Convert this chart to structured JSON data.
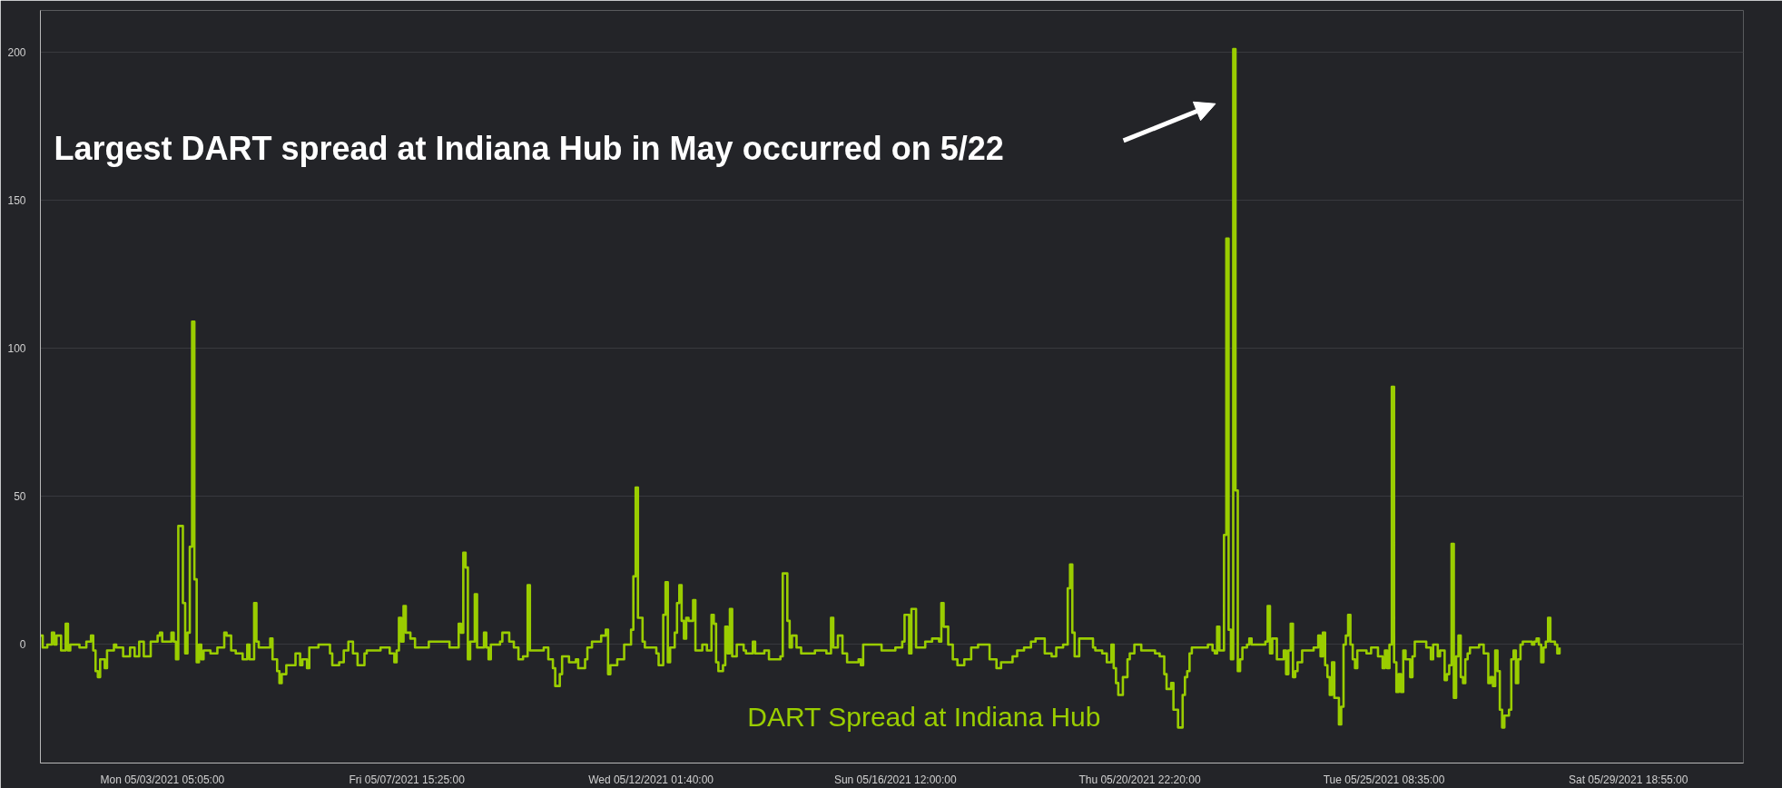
{
  "chart_data": {
    "type": "step",
    "xlim": [
      "2021-05-01T00:00",
      "2021-05-31T21:00"
    ],
    "ylim": [
      -40,
      214
    ],
    "xticks": [
      {
        "value": "2021-05-03T05:05",
        "label": "Mon 05/03/2021 05:05:00"
      },
      {
        "value": "2021-05-07T15:25",
        "label": "Fri 05/07/2021 15:25:00"
      },
      {
        "value": "2021-05-12T01:40",
        "label": "Wed 05/12/2021 01:40:00"
      },
      {
        "value": "2021-05-16T12:00",
        "label": "Sun 05/16/2021 12:00:00"
      },
      {
        "value": "2021-05-20T22:20",
        "label": "Thu 05/20/2021 22:20:00"
      },
      {
        "value": "2021-05-25T08:35",
        "label": "Tue 05/25/2021 08:35:00"
      },
      {
        "value": "2021-05-29T18:55",
        "label": "Sat 05/29/2021 18:55:00"
      }
    ],
    "yticks": [
      0,
      50,
      100,
      150,
      200
    ],
    "grid": "y",
    "annotations": [
      "Largest DART spread at Indiana Hub in May occurred on 5/22"
    ],
    "series": [
      {
        "name": "DART Spread at Indiana Hub",
        "color": "#9acd00",
        "x": [
          "2021-05-01T00:00",
          "2021-05-01T01:00",
          "2021-05-01T03:00",
          "2021-05-01T05:00",
          "2021-05-01T06:00",
          "2021-05-01T07:00",
          "2021-05-01T09:00",
          "2021-05-01T11:00",
          "2021-05-01T12:00",
          "2021-05-01T13:00",
          "2021-05-01T17:00",
          "2021-05-01T20:00",
          "2021-05-01T22:00",
          "2021-05-01T23:00",
          "2021-05-02T00:00",
          "2021-05-02T01:00",
          "2021-05-02T02:00",
          "2021-05-02T04:00",
          "2021-05-02T05:00",
          "2021-05-02T08:00",
          "2021-05-02T09:00",
          "2021-05-02T12:00",
          "2021-05-02T15:00",
          "2021-05-02T17:00",
          "2021-05-02T19:00",
          "2021-05-02T21:00",
          "2021-05-03T00:00",
          "2021-05-03T03:00",
          "2021-05-03T04:00",
          "2021-05-03T05:00",
          "2021-05-03T09:00",
          "2021-05-03T10:00",
          "2021-05-03T11:00",
          "2021-05-03T12:00",
          "2021-05-03T14:00",
          "2021-05-03T15:00",
          "2021-05-03T16:00",
          "2021-05-03T17:00",
          "2021-05-03T18:00",
          "2021-05-03T19:00",
          "2021-05-03T20:00",
          "2021-05-03T21:00",
          "2021-05-03T22:00",
          "2021-05-03T23:00",
          "2021-05-04T02:00",
          "2021-05-04T05:00",
          "2021-05-04T08:00",
          "2021-05-04T09:00",
          "2021-05-04T11:00",
          "2021-05-04T13:00",
          "2021-05-04T16:00",
          "2021-05-04T18:00",
          "2021-05-04T19:00",
          "2021-05-04T21:00",
          "2021-05-04T22:00",
          "2021-05-04T23:00",
          "2021-05-05T04:00",
          "2021-05-05T05:00",
          "2021-05-05T07:00",
          "2021-05-05T08:00",
          "2021-05-05T09:00",
          "2021-05-05T11:00",
          "2021-05-05T15:00",
          "2021-05-05T17:00",
          "2021-05-05T18:00",
          "2021-05-05T20:00",
          "2021-05-05T21:00",
          "2021-05-06T01:00",
          "2021-05-06T06:00",
          "2021-05-06T07:00",
          "2021-05-06T10:00",
          "2021-05-06T12:00",
          "2021-05-06T14:00",
          "2021-05-06T16:00",
          "2021-05-06T18:00",
          "2021-05-06T21:00",
          "2021-05-06T22:00",
          "2021-05-07T04:00",
          "2021-05-07T08:00",
          "2021-05-07T10:00",
          "2021-05-07T11:00",
          "2021-05-07T12:00",
          "2021-05-07T13:00",
          "2021-05-07T14:00",
          "2021-05-07T15:00",
          "2021-05-07T17:00",
          "2021-05-07T19:00",
          "2021-05-08T01:00",
          "2021-05-08T09:00",
          "2021-05-08T10:00",
          "2021-05-08T14:00",
          "2021-05-08T15:00",
          "2021-05-08T16:00",
          "2021-05-08T17:00",
          "2021-05-08T18:00",
          "2021-05-08T19:00",
          "2021-05-08T21:00",
          "2021-05-08T22:00",
          "2021-05-09T01:00",
          "2021-05-09T02:00",
          "2021-05-09T03:00",
          "2021-05-09T04:00",
          "2021-05-09T08:00",
          "2021-05-09T09:00",
          "2021-05-09T12:00",
          "2021-05-09T14:00",
          "2021-05-09T16:00",
          "2021-05-09T18:00",
          "2021-05-09T20:00",
          "2021-05-09T21:00",
          "2021-05-10T03:00",
          "2021-05-10T05:00",
          "2021-05-10T07:00",
          "2021-05-10T08:00",
          "2021-05-10T10:00",
          "2021-05-10T11:00",
          "2021-05-10T14:00",
          "2021-05-10T17:00",
          "2021-05-10T18:00",
          "2021-05-10T21:00",
          "2021-05-10T22:00",
          "2021-05-11T00:00",
          "2021-05-11T04:00",
          "2021-05-11T06:00",
          "2021-05-11T07:00",
          "2021-05-11T08:00",
          "2021-05-11T11:00",
          "2021-05-11T14:00",
          "2021-05-11T17:00",
          "2021-05-11T18:00",
          "2021-05-11T19:00",
          "2021-05-11T20:00",
          "2021-05-11T22:00",
          "2021-05-11T23:00",
          "2021-05-12T02:00",
          "2021-05-12T04:00",
          "2021-05-12T05:00",
          "2021-05-12T07:00",
          "2021-05-12T08:00",
          "2021-05-12T09:00",
          "2021-05-12T10:00",
          "2021-05-12T12:00",
          "2021-05-12T13:00",
          "2021-05-12T14:00",
          "2021-05-12T15:00",
          "2021-05-12T16:00",
          "2021-05-12T17:00",
          "2021-05-12T18:00",
          "2021-05-12T20:00",
          "2021-05-12T21:00",
          "2021-05-13T00:00",
          "2021-05-13T02:00",
          "2021-05-13T04:00",
          "2021-05-13T05:00",
          "2021-05-13T06:00",
          "2021-05-13T07:00",
          "2021-05-13T09:00",
          "2021-05-13T10:00",
          "2021-05-13T11:00",
          "2021-05-13T12:00",
          "2021-05-13T13:00",
          "2021-05-13T15:00",
          "2021-05-13T18:00",
          "2021-05-13T19:00",
          "2021-05-13T22:00",
          "2021-05-13T23:00",
          "2021-05-14T03:00",
          "2021-05-14T05:00",
          "2021-05-14T10:00",
          "2021-05-14T11:00",
          "2021-05-14T13:00",
          "2021-05-14T14:00",
          "2021-05-14T15:00",
          "2021-05-14T17:00",
          "2021-05-14T19:00",
          "2021-05-15T01:00",
          "2021-05-15T06:00",
          "2021-05-15T08:00",
          "2021-05-15T09:00",
          "2021-05-15T11:00",
          "2021-05-15T13:00",
          "2021-05-15T15:00",
          "2021-05-15T20:00",
          "2021-05-15T21:00",
          "2021-05-15T22:00",
          "2021-05-16T06:00",
          "2021-05-16T12:00",
          "2021-05-16T15:00",
          "2021-05-16T16:00",
          "2021-05-16T18:00",
          "2021-05-16T19:00",
          "2021-05-16T21:00",
          "2021-05-17T01:00",
          "2021-05-17T04:00",
          "2021-05-17T07:00",
          "2021-05-17T08:00",
          "2021-05-17T09:00",
          "2021-05-17T11:00",
          "2021-05-17T13:00",
          "2021-05-17T15:00",
          "2021-05-17T18:00",
          "2021-05-17T21:00",
          "2021-05-18T00:00",
          "2021-05-18T05:00",
          "2021-05-18T08:00",
          "2021-05-18T10:00",
          "2021-05-18T15:00",
          "2021-05-18T17:00",
          "2021-05-18T20:00",
          "2021-05-18T23:00",
          "2021-05-19T01:00",
          "2021-05-19T05:00",
          "2021-05-19T08:00",
          "2021-05-19T10:00",
          "2021-05-19T13:00",
          "2021-05-19T15:00",
          "2021-05-19T16:00",
          "2021-05-19T17:00",
          "2021-05-19T18:00",
          "2021-05-19T20:00",
          "2021-05-20T02:00",
          "2021-05-20T03:00",
          "2021-05-20T06:00",
          "2021-05-20T08:00",
          "2021-05-20T10:00",
          "2021-05-20T11:00",
          "2021-05-20T12:00",
          "2021-05-20T13:00",
          "2021-05-20T15:00",
          "2021-05-20T17:00",
          "2021-05-20T18:00",
          "2021-05-20T20:00",
          "2021-05-20T23:00",
          "2021-05-21T05:00",
          "2021-05-21T07:00",
          "2021-05-21T09:00",
          "2021-05-21T10:00",
          "2021-05-21T12:00",
          "2021-05-21T13:00",
          "2021-05-21T15:00",
          "2021-05-21T17:00",
          "2021-05-21T18:00",
          "2021-05-21T19:00",
          "2021-05-21T20:00",
          "2021-05-21T21:00",
          "2021-05-22T04:00",
          "2021-05-22T06:00",
          "2021-05-22T07:00",
          "2021-05-22T08:00",
          "2021-05-22T09:00",
          "2021-05-22T11:00",
          "2021-05-22T12:00",
          "2021-05-22T13:00",
          "2021-05-22T14:00",
          "2021-05-22T15:00",
          "2021-05-22T16:00",
          "2021-05-22T17:00",
          "2021-05-22T18:00",
          "2021-05-22T19:00",
          "2021-05-22T21:00",
          "2021-05-22T22:00",
          "2021-05-22T23:00",
          "2021-05-23T05:00",
          "2021-05-23T06:00",
          "2021-05-23T07:00",
          "2021-05-23T08:00",
          "2021-05-23T10:00",
          "2021-05-23T13:00",
          "2021-05-23T14:00",
          "2021-05-23T15:00",
          "2021-05-23T16:00",
          "2021-05-23T17:00",
          "2021-05-23T18:00",
          "2021-05-23T19:00",
          "2021-05-23T21:00",
          "2021-05-24T02:00",
          "2021-05-24T04:00",
          "2021-05-24T05:00",
          "2021-05-24T06:00",
          "2021-05-24T07:00",
          "2021-05-24T08:00",
          "2021-05-24T09:00",
          "2021-05-24T10:00",
          "2021-05-24T11:00",
          "2021-05-24T13:00",
          "2021-05-24T14:00",
          "2021-05-24T15:00",
          "2021-05-24T16:00",
          "2021-05-24T17:00",
          "2021-05-24T18:00",
          "2021-05-24T19:00",
          "2021-05-24T20:00",
          "2021-05-24T21:00",
          "2021-05-25T01:00",
          "2021-05-25T03:00",
          "2021-05-25T06:00",
          "2021-05-25T08:00",
          "2021-05-25T09:00",
          "2021-05-25T10:00",
          "2021-05-25T11:00",
          "2021-05-25T12:00",
          "2021-05-25T13:00",
          "2021-05-25T14:00",
          "2021-05-25T15:00",
          "2021-05-25T16:00",
          "2021-05-25T17:00",
          "2021-05-25T18:00",
          "2021-05-25T20:00",
          "2021-05-25T21:00",
          "2021-05-25T22:00",
          "2021-05-26T03:00",
          "2021-05-26T05:00",
          "2021-05-26T06:00",
          "2021-05-26T08:00",
          "2021-05-26T09:00",
          "2021-05-26T11:00",
          "2021-05-26T12:00",
          "2021-05-26T13:00",
          "2021-05-26T14:00",
          "2021-05-26T15:00",
          "2021-05-26T16:00",
          "2021-05-26T17:00",
          "2021-05-26T18:00",
          "2021-05-26T19:00",
          "2021-05-26T20:00",
          "2021-05-26T21:00",
          "2021-05-26T22:00",
          "2021-05-27T02:00",
          "2021-05-27T04:00",
          "2021-05-27T06:00",
          "2021-05-27T07:00",
          "2021-05-27T08:00",
          "2021-05-27T09:00",
          "2021-05-27T10:00",
          "2021-05-27T11:00",
          "2021-05-27T12:00",
          "2021-05-27T13:00",
          "2021-05-27T15:00",
          "2021-05-27T16:00",
          "2021-05-27T17:00",
          "2021-05-27T18:00",
          "2021-05-27T19:00",
          "2021-05-27T20:00",
          "2021-05-27T21:00",
          "2021-05-28T01:00",
          "2021-05-28T02:00",
          "2021-05-28T03:00",
          "2021-05-28T04:00",
          "2021-05-28T05:00",
          "2021-05-28T06:00",
          "2021-05-28T07:00",
          "2021-05-28T08:00",
          "2021-05-28T09:00",
          "2021-05-28T11:00",
          "2021-05-28T12:00",
          "2021-05-28T13:00"
        ],
        "values": [
          3,
          -1,
          0,
          4,
          0,
          3,
          -2,
          7,
          -2,
          0,
          -1,
          1,
          3,
          -2,
          -9,
          -11,
          -5,
          -8,
          -2,
          0,
          -1,
          -4,
          -1,
          -4,
          1,
          -4,
          1,
          3,
          4,
          1,
          4,
          1,
          -5,
          40,
          14,
          -3,
          4,
          33,
          109,
          22,
          -6,
          0,
          -5,
          -2,
          -3,
          -1,
          4,
          3,
          -2,
          -3,
          -5,
          0,
          -5,
          14,
          1,
          -1,
          2,
          -5,
          -9,
          -13,
          -10,
          -7,
          -3,
          -7,
          -5,
          -8,
          -1,
          0,
          -3,
          -7,
          -6,
          -2,
          1,
          -3,
          -7,
          -3,
          -2,
          -1,
          -3,
          -6,
          -2,
          9,
          1,
          13,
          4,
          2,
          -1,
          1,
          1,
          -1,
          7,
          4,
          31,
          26,
          -5,
          1,
          17,
          -1,
          4,
          -1,
          -5,
          0,
          1,
          4,
          1,
          -1,
          -5,
          -4,
          20,
          -2,
          -1,
          -5,
          -8,
          -14,
          -10,
          -4,
          -6,
          -5,
          -8,
          -5,
          -1,
          1,
          3,
          5,
          -10,
          -7,
          -5,
          0,
          5,
          23,
          53,
          9,
          1,
          -1,
          -1,
          -3,
          -7,
          10,
          21,
          -6,
          -1,
          4,
          14,
          20,
          8,
          2,
          9,
          8,
          15,
          -2,
          0,
          -2,
          10,
          7,
          -6,
          -9,
          -7,
          6,
          -3,
          12,
          -4,
          0,
          -2,
          -3,
          1,
          -3,
          -2,
          -5,
          -4,
          24,
          8,
          -1,
          3,
          -1,
          -3,
          -2,
          -3,
          9,
          -1,
          3,
          -3,
          -6,
          -5,
          -7,
          0,
          -2,
          -1,
          1,
          10,
          -3,
          12,
          -1,
          1,
          2,
          1,
          14,
          6,
          0,
          -5,
          -7,
          -5,
          -1,
          0,
          -5,
          -8,
          -6,
          -4,
          -2,
          -1,
          1,
          2,
          -3,
          -4,
          -1,
          0,
          19,
          27,
          4,
          -4,
          2,
          -1,
          -2,
          -3,
          -6,
          0,
          -8,
          -13,
          -17,
          -11,
          -5,
          -3,
          0,
          -2,
          -3,
          -4,
          -10,
          -15,
          -13,
          -22,
          -28,
          -17,
          -11,
          -9,
          -3,
          -1,
          0,
          -2,
          -3,
          6,
          -2,
          37,
          137,
          5,
          -5,
          201,
          52,
          -9,
          -5,
          -1,
          0,
          2,
          0,
          1,
          13,
          -3,
          2,
          -5,
          -2,
          -10,
          -2,
          7,
          -11,
          -9,
          -6,
          -2,
          -1,
          3,
          -4,
          4,
          -7,
          -11,
          -17,
          -6,
          -18,
          -27,
          -21,
          0,
          3,
          10,
          0,
          -5,
          -8,
          -2,
          -3,
          -1,
          -4,
          -8,
          -2,
          -8,
          0,
          87,
          -6,
          -16,
          -10,
          -16,
          -2,
          -5,
          -11,
          -4,
          1,
          -1,
          -5,
          0,
          -4,
          -2,
          -12,
          -10,
          -7,
          34,
          -18,
          -4,
          3,
          -11,
          -13,
          -5,
          -3,
          -1,
          0,
          -3,
          -13,
          -11,
          -14,
          -2,
          -9,
          -22,
          -28,
          -24,
          -22,
          -5,
          -2,
          -13,
          -5,
          0,
          1,
          0,
          1,
          2,
          0,
          -6,
          -1,
          1,
          9,
          1,
          0,
          -3,
          -1
        ]
      }
    ]
  }
}
